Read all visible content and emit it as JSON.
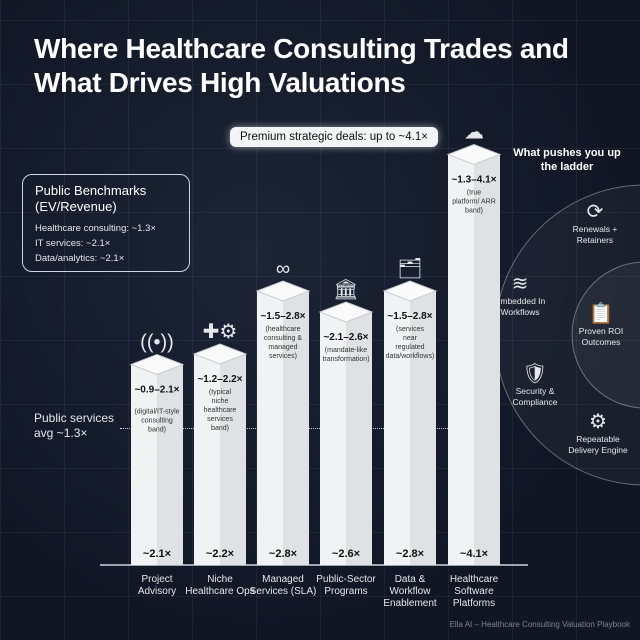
{
  "title": "Where Healthcare Consulting Trades and What Drives High Valuations",
  "premium_callout": "Premium strategic deals: up to ~4.1×",
  "benchmarks": {
    "heading": "Public Benchmarks (EV/Revenue)",
    "items": [
      "Healthcare consulting: ~1.3×",
      "IT services: ~2.1×",
      "Data/analytics: ~2.1×"
    ]
  },
  "public_avg_label": "Public services avg ~1.3×",
  "chart_data": {
    "type": "bar",
    "title": "Where Healthcare Consulting Trades and What Drives High Valuations",
    "categories": [
      "Project Advisory",
      "Niche Healthcare Ops",
      "Managed Services (SLA)",
      "Public-Sector Programs",
      "Data & Workflow Enablement",
      "Healthcare Software Platforms"
    ],
    "values": [
      2.1,
      2.2,
      2.8,
      2.6,
      2.8,
      4.1
    ],
    "value_labels": [
      "~2.1×",
      "~2.2×",
      "~2.8×",
      "~2.6×",
      "~2.8×",
      "~4.1×"
    ],
    "ranges": [
      "~0.9–2.1×",
      "~1.2–2.2×",
      "~1.5–2.8×",
      "~2.1–2.6×",
      "~1.5–2.8×",
      "~1.3–4.1×"
    ],
    "range_notes": [
      "(digital/IT-style consulting band)",
      "(typical niche healthcare services band)",
      "(healthcare consulting & managed services)",
      "(mandate-like transformation)",
      "(services near regulated data/workflows)",
      "(true platform/ ARR band)"
    ],
    "icons": [
      "antenna-icon",
      "medical-gear-icon",
      "infinity-clock-icon",
      "government-badge-icon",
      "data-flow-icon",
      "cloud-icon"
    ],
    "reference_line": 1.3,
    "bar_color": "#f1f2f4"
  },
  "drivers": {
    "heading": "What pushes you up the ladder",
    "items": [
      {
        "label": "Renewals + Retainers",
        "icon": "refresh-icon"
      },
      {
        "label": "Embedded In Workflows",
        "icon": "layers-plug-icon"
      },
      {
        "label": "Proven ROI Outcomes",
        "icon": "clipboard-chart-icon"
      },
      {
        "label": "Security & Compliance",
        "icon": "shield-lock-icon"
      },
      {
        "label": "Repeatable Delivery Engine",
        "icon": "gears-icon"
      }
    ]
  },
  "footer": "Ella AI – Healthcare Consulting Valuation Playbook"
}
